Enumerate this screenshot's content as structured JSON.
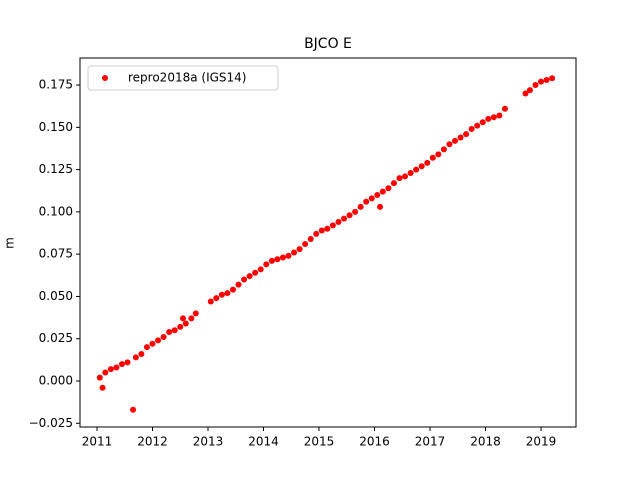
{
  "chart_data": {
    "type": "scatter",
    "title": "BJCO E",
    "y_label": "m",
    "xlim": [
      2010.694,
      2019.63
    ],
    "ylim": [
      -0.0272,
      0.191
    ],
    "xticks": [
      2011,
      2012,
      2013,
      2014,
      2015,
      2016,
      2017,
      2018,
      2019
    ],
    "yticks": [
      {
        "value": -0.025,
        "label": "−0.025"
      },
      {
        "value": 0,
        "label": "0.000"
      },
      {
        "value": 0.025,
        "label": "0.025"
      },
      {
        "value": 0.05,
        "label": "0.050"
      },
      {
        "value": 0.075,
        "label": "0.075"
      },
      {
        "value": 0.1,
        "label": "0.100"
      },
      {
        "value": 0.125,
        "label": "0.125"
      },
      {
        "value": 0.15,
        "label": "0.150"
      },
      {
        "value": 0.175,
        "label": "0.175"
      }
    ],
    "legend": "upper left",
    "series": [
      {
        "name": "repro2018a (IGS14)",
        "color": "#ff0000",
        "x": [
          2011.05,
          2011.1,
          2011.15,
          2011.25,
          2011.35,
          2011.45,
          2011.55,
          2011.65,
          2011.7,
          2011.8,
          2011.9,
          2012.0,
          2012.1,
          2012.2,
          2012.3,
          2012.4,
          2012.5,
          2012.55,
          2012.6,
          2012.7,
          2012.78,
          2013.05,
          2013.15,
          2013.25,
          2013.35,
          2013.45,
          2013.55,
          2013.65,
          2013.75,
          2013.85,
          2013.95,
          2014.05,
          2014.15,
          2014.25,
          2014.35,
          2014.45,
          2014.55,
          2014.65,
          2014.75,
          2014.85,
          2014.95,
          2015.05,
          2015.15,
          2015.25,
          2015.35,
          2015.45,
          2015.55,
          2015.65,
          2015.75,
          2015.85,
          2015.95,
          2016.05,
          2016.1,
          2016.15,
          2016.25,
          2016.35,
          2016.45,
          2016.55,
          2016.65,
          2016.75,
          2016.85,
          2016.95,
          2017.05,
          2017.15,
          2017.25,
          2017.35,
          2017.45,
          2017.55,
          2017.65,
          2017.75,
          2017.85,
          2017.95,
          2018.05,
          2018.15,
          2018.25,
          2018.35,
          2018.72,
          2018.8,
          2018.9,
          2019.0,
          2019.1,
          2019.2
        ],
        "values": [
          0.002,
          -0.004,
          0.005,
          0.007,
          0.008,
          0.01,
          0.011,
          -0.017,
          0.014,
          0.016,
          0.02,
          0.022,
          0.024,
          0.026,
          0.029,
          0.03,
          0.032,
          0.037,
          0.034,
          0.037,
          0.04,
          0.047,
          0.049,
          0.051,
          0.052,
          0.054,
          0.057,
          0.06,
          0.062,
          0.064,
          0.066,
          0.069,
          0.071,
          0.072,
          0.073,
          0.074,
          0.076,
          0.078,
          0.081,
          0.084,
          0.087,
          0.089,
          0.09,
          0.092,
          0.094,
          0.096,
          0.098,
          0.1,
          0.103,
          0.106,
          0.108,
          0.11,
          0.103,
          0.112,
          0.114,
          0.117,
          0.12,
          0.121,
          0.123,
          0.125,
          0.127,
          0.129,
          0.132,
          0.134,
          0.137,
          0.14,
          0.142,
          0.144,
          0.146,
          0.149,
          0.151,
          0.153,
          0.155,
          0.156,
          0.157,
          0.161,
          0.17,
          0.172,
          0.175,
          0.177,
          0.178,
          0.179
        ]
      }
    ]
  }
}
